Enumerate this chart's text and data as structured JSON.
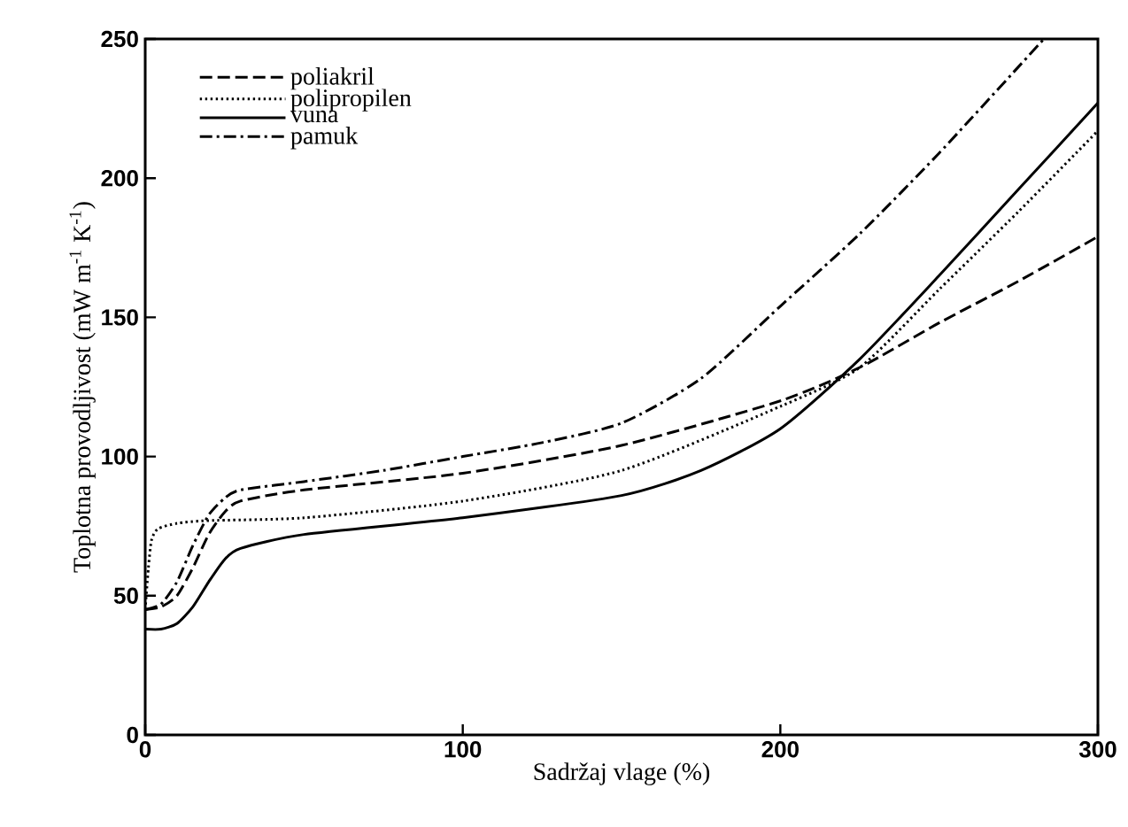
{
  "chart_data": {
    "type": "line",
    "xlabel": "Sadržaj vlage (%)",
    "ylabel": "Toplotna provodljivost (mW m$^{-1}$ K$^{-1}$)",
    "xlim": [
      0,
      300
    ],
    "ylim": [
      0,
      250
    ],
    "xticks": [
      0,
      100,
      200,
      300
    ],
    "yticks": [
      0,
      50,
      100,
      150,
      200,
      250
    ],
    "grid": false,
    "legend": "top left",
    "marker": "none",
    "series": [
      {
        "name": "poliakril",
        "color": "#000000",
        "line_style": "dashed",
        "x": [
          0,
          5,
          10,
          15,
          20,
          25,
          30,
          50,
          100,
          150,
          200,
          225,
          250,
          275,
          300
        ],
        "values": [
          45,
          46,
          50,
          60,
          72,
          80,
          84,
          88,
          94,
          104,
          120,
          132,
          148,
          163,
          179
        ]
      },
      {
        "name": "polipropilen",
        "color": "#000000",
        "line_style": "dotted",
        "x": [
          0,
          1,
          2,
          4,
          10,
          20,
          50,
          100,
          150,
          200,
          225,
          250,
          275,
          300
        ],
        "values": [
          45,
          60,
          70,
          74,
          76,
          77,
          78,
          84,
          95,
          118,
          132,
          160,
          188,
          217
        ]
      },
      {
        "name": "vuna",
        "color": "#000000",
        "line_style": "solid",
        "x": [
          0,
          5,
          10,
          15,
          20,
          25,
          30,
          50,
          100,
          150,
          175,
          200,
          225,
          250,
          275,
          300
        ],
        "values": [
          38,
          38,
          40,
          46,
          55,
          63,
          67,
          72,
          78,
          86,
          95,
          110,
          135,
          165,
          196,
          227
        ]
      },
      {
        "name": "pamuk",
        "color": "#000000",
        "line_style": "dashdot",
        "x": [
          0,
          5,
          10,
          15,
          20,
          25,
          30,
          50,
          75,
          100,
          125,
          150,
          175,
          200,
          225,
          250,
          283
        ],
        "values": [
          45,
          47,
          55,
          68,
          79,
          85,
          88,
          91,
          95,
          100,
          105,
          112,
          128,
          154,
          180,
          209,
          250
        ]
      }
    ]
  }
}
